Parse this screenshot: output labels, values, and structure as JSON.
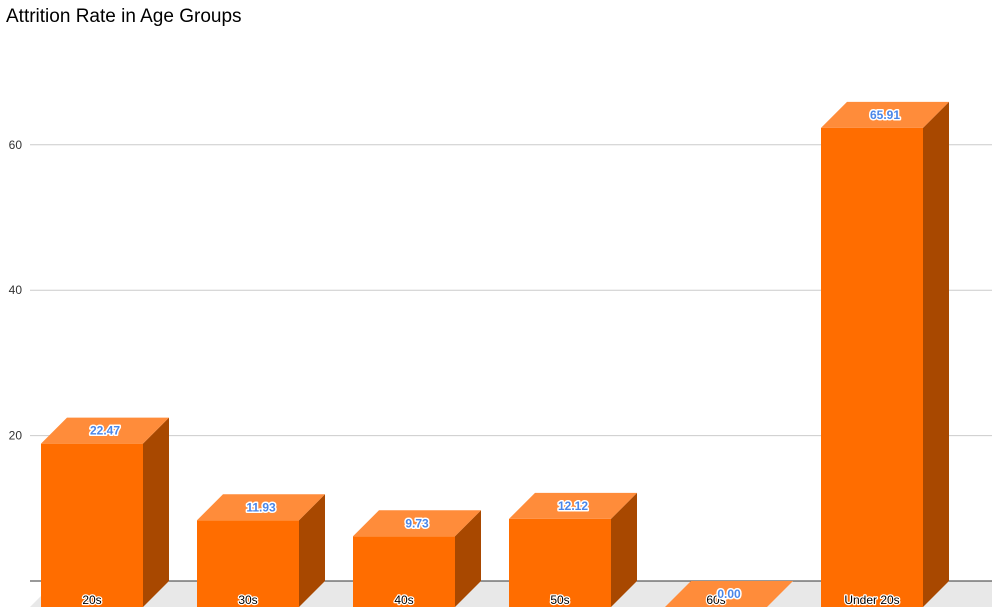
{
  "chart_data": {
    "type": "bar",
    "title": "Attrition Rate in Age Groups",
    "categories": [
      "20s",
      "30s",
      "40s",
      "50s",
      "60s",
      "Under 20s"
    ],
    "values": [
      22.47,
      11.93,
      9.73,
      12.12,
      0.0,
      65.91
    ],
    "value_labels": [
      "22.47",
      "11.93",
      "9.73",
      "12.12",
      "0.00",
      "65.91"
    ],
    "xlabel": "",
    "ylabel": "",
    "ylim": [
      0,
      70
    ],
    "yticks": [
      20,
      40,
      60
    ],
    "ytick_labels": [
      "20",
      "40",
      "60"
    ],
    "grid": true,
    "legend": "none",
    "style": "3d",
    "colors": {
      "bar_front": "#ff6d00",
      "bar_top": "#ff8c3a",
      "bar_side": "#a84800",
      "value_label": "#4a86e8",
      "gridline": "#cccccc",
      "floor": "#e8e8e8"
    }
  }
}
